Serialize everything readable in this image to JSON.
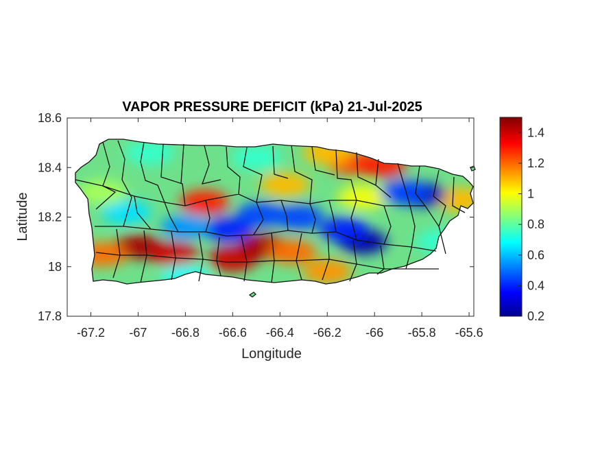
{
  "map": {
    "title": "VAPOR PRESSURE DEFICIT (kPa) 21-Jul-2025",
    "x_label": "Longitude",
    "y_label": "Latitude",
    "x_ticks": [
      "-67.2",
      "-67",
      "-66.8",
      "-66.6",
      "-66.4",
      "-66.2",
      "-66",
      "-65.8",
      "-65.6"
    ],
    "y_ticks": [
      "18.6",
      "18.4",
      "18.2",
      "18",
      "17.8"
    ],
    "colorbar_ticks": [
      "1.4",
      "1.2",
      "1",
      "0.8",
      "0.6",
      "0.4",
      "0.2"
    ]
  },
  "chart_data": {
    "type": "heatmap",
    "title": "VAPOR PRESSURE DEFICIT (kPa) 21-Jul-2025",
    "xlabel": "Longitude",
    "ylabel": "Latitude",
    "xlim": [
      -67.3,
      -65.58
    ],
    "ylim": [
      17.8,
      18.6
    ],
    "x_ticks": [
      -67.2,
      -67,
      -66.8,
      -66.6,
      -66.4,
      -66.2,
      -66,
      -65.8,
      -65.6
    ],
    "y_ticks": [
      18.6,
      18.4,
      18.2,
      18,
      17.8
    ],
    "colorbar": {
      "min": 0.2,
      "max": 1.5,
      "ticks": [
        1.4,
        1.2,
        1,
        0.8,
        0.6,
        0.4,
        0.2
      ],
      "colormap": "jet"
    },
    "grid": false,
    "value_estimates_kpa": [
      {
        "lon": -67.0,
        "lat": 18.08,
        "value": 1.45
      },
      {
        "lon": -66.85,
        "lat": 18.05,
        "value": 1.4
      },
      {
        "lon": -66.6,
        "lat": 18.03,
        "value": 1.4
      },
      {
        "lon": -66.47,
        "lat": 18.08,
        "value": 1.45
      },
      {
        "lon": -66.35,
        "lat": 18.06,
        "value": 1.2
      },
      {
        "lon": -66.2,
        "lat": 17.98,
        "value": 1.15
      },
      {
        "lon": -67.15,
        "lat": 18.05,
        "value": 1.2
      },
      {
        "lon": -66.72,
        "lat": 18.26,
        "value": 1.3
      },
      {
        "lon": -66.38,
        "lat": 18.33,
        "value": 1.1
      },
      {
        "lon": -66.1,
        "lat": 18.42,
        "value": 1.25
      },
      {
        "lon": -65.97,
        "lat": 18.41,
        "value": 1.3
      },
      {
        "lon": -66.2,
        "lat": 18.46,
        "value": 1.1
      },
      {
        "lon": -65.64,
        "lat": 18.27,
        "value": 1.1
      },
      {
        "lon": -66.05,
        "lat": 18.28,
        "value": 1.0
      },
      {
        "lon": -65.8,
        "lat": 18.29,
        "value": 0.25
      },
      {
        "lon": -65.87,
        "lat": 18.3,
        "value": 0.45
      },
      {
        "lon": -66.05,
        "lat": 18.1,
        "value": 0.25
      },
      {
        "lon": -66.13,
        "lat": 18.15,
        "value": 0.4
      },
      {
        "lon": -66.48,
        "lat": 18.21,
        "value": 0.45
      },
      {
        "lon": -66.32,
        "lat": 18.2,
        "value": 0.45
      },
      {
        "lon": -66.62,
        "lat": 18.15,
        "value": 0.4
      },
      {
        "lon": -66.8,
        "lat": 18.16,
        "value": 0.55
      },
      {
        "lon": -67.05,
        "lat": 18.22,
        "value": 0.65
      },
      {
        "lon": -66.95,
        "lat": 18.46,
        "value": 0.75
      },
      {
        "lon": -66.5,
        "lat": 18.44,
        "value": 0.75
      },
      {
        "lon": -67.15,
        "lat": 18.3,
        "value": 0.9
      },
      {
        "lon": -65.72,
        "lat": 18.1,
        "value": 0.75
      },
      {
        "lon": -66.8,
        "lat": 17.96,
        "value": 0.7
      }
    ]
  }
}
